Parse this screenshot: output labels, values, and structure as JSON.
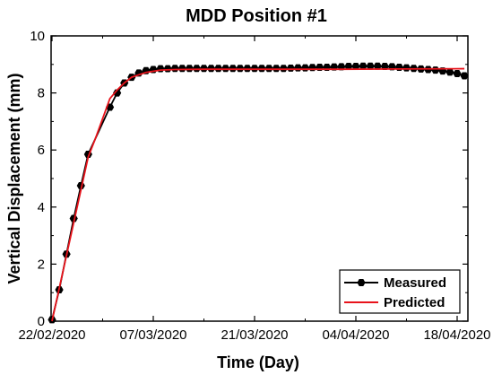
{
  "chart_data": {
    "type": "line",
    "title": "MDD Position #1",
    "xlabel": "Time (Day)",
    "ylabel": "Vertical Displacement (mm)",
    "x_tick_labels": [
      "22/02/2020",
      "07/03/2020",
      "21/03/2020",
      "04/04/2020",
      "18/04/2020"
    ],
    "y_tick_labels": [
      "0",
      "2",
      "4",
      "6",
      "8",
      "10"
    ],
    "ylim": [
      0,
      10
    ],
    "xlim": [
      "2020-02-22",
      "2020-04-18"
    ],
    "legend": {
      "position": "bottom-right"
    },
    "series": [
      {
        "name": "Measured",
        "color": "#000000",
        "marker": "hexagon",
        "x": [
          "2020-02-22",
          "2020-02-23",
          "2020-02-24",
          "2020-02-25",
          "2020-02-26",
          "2020-02-27",
          "2020-03-01",
          "2020-03-02",
          "2020-03-03",
          "2020-03-04",
          "2020-03-05",
          "2020-03-06",
          "2020-03-07",
          "2020-03-08",
          "2020-03-09",
          "2020-03-10",
          "2020-03-11",
          "2020-03-12",
          "2020-03-13",
          "2020-03-14",
          "2020-03-15",
          "2020-03-16",
          "2020-03-17",
          "2020-03-18",
          "2020-03-19",
          "2020-03-20",
          "2020-03-21",
          "2020-03-22",
          "2020-03-23",
          "2020-03-24",
          "2020-03-25",
          "2020-03-26",
          "2020-03-27",
          "2020-03-28",
          "2020-03-29",
          "2020-03-30",
          "2020-03-31",
          "2020-04-01",
          "2020-04-02",
          "2020-04-03",
          "2020-04-04",
          "2020-04-05",
          "2020-04-06",
          "2020-04-07",
          "2020-04-08",
          "2020-04-09",
          "2020-04-10",
          "2020-04-11",
          "2020-04-12",
          "2020-04-13",
          "2020-04-14",
          "2020-04-15",
          "2020-04-16",
          "2020-04-17",
          "2020-04-18",
          "2020-04-19"
        ],
        "y": [
          0.05,
          1.1,
          2.35,
          3.6,
          4.75,
          5.85,
          7.5,
          8.0,
          8.35,
          8.55,
          8.7,
          8.78,
          8.82,
          8.85,
          8.85,
          8.86,
          8.86,
          8.86,
          8.86,
          8.86,
          8.86,
          8.86,
          8.86,
          8.86,
          8.86,
          8.86,
          8.86,
          8.86,
          8.86,
          8.86,
          8.86,
          8.87,
          8.88,
          8.88,
          8.89,
          8.9,
          8.9,
          8.91,
          8.92,
          8.93,
          8.93,
          8.94,
          8.94,
          8.94,
          8.93,
          8.92,
          8.9,
          8.88,
          8.86,
          8.84,
          8.82,
          8.8,
          8.77,
          8.73,
          8.68,
          8.6
        ]
      },
      {
        "name": "Predicted",
        "color": "#e8131b",
        "x": [
          "2020-02-22",
          "2020-02-27",
          "2020-02-28",
          "2020-02-29",
          "2020-03-01",
          "2020-03-02",
          "2020-03-03",
          "2020-03-04",
          "2020-03-06",
          "2020-03-08",
          "2020-03-10",
          "2020-03-14",
          "2020-03-21",
          "2020-04-01",
          "2020-04-10",
          "2020-04-19"
        ],
        "y": [
          0,
          5.75,
          6.4,
          7.1,
          7.8,
          8.1,
          8.35,
          8.55,
          8.72,
          8.8,
          8.82,
          8.83,
          8.83,
          8.83,
          8.84,
          8.85
        ]
      }
    ]
  }
}
